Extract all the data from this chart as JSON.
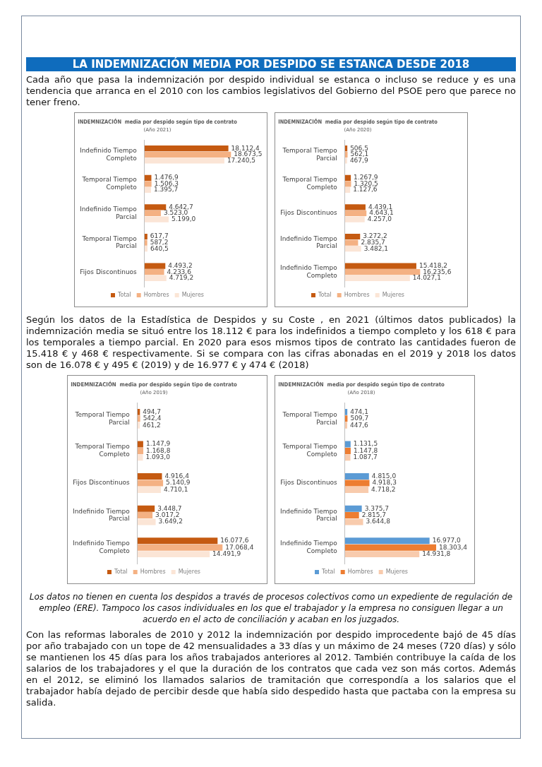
{
  "chart_data": [
    {
      "type": "other",
      "title": "LA INDEMNIZACIÓN MEDIA POR DESPIDO SE ESTANCA DESDE 2018",
      "annotations": [
        "Cada año que pasa la indemnización por despido individual se estanca o incluso se reduce y es una tendencia que arranca en el 2010 con los cambios legislativos del Gobierno del PSOE pero que parece no tener freno."
      ]
    },
    {
      "type": "bar",
      "orientation": "horizontal",
      "title": "INDEMNIZACIÓN  media por despido según tipo de contrato",
      "subtitle": "(Año 2021)",
      "legend": "bottom",
      "categories": [
        "Indefinido Tiempo Completo",
        "Temporal Tiempo Completo",
        "Indefinido Tiempo Parcial",
        "Temporal Tiempo Parcial",
        "Fijos Discontinuos"
      ],
      "series": [
        {
          "name": "Total",
          "color": "#c55a11",
          "values": [
            18112.4,
            1476.9,
            4642.7,
            617.7,
            4493.2
          ],
          "value_labels": [
            "18.112,4",
            "1.476,9",
            "4.642,7",
            "617,7",
            "4.493,2"
          ]
        },
        {
          "name": "Hombres",
          "color": "#f4b183",
          "values": [
            18673.5,
            1506.3,
            3523.0,
            587.2,
            4233.6
          ],
          "value_labels": [
            "18.673,5",
            "1.506,3",
            "3.523,0",
            "587,2",
            "4.233,6"
          ]
        },
        {
          "name": "Mujeres",
          "color": "#fbe5d6",
          "values": [
            17240.5,
            1395.7,
            5199.0,
            640.5,
            4719.2
          ],
          "value_labels": [
            "17.240,5",
            "1.395,7",
            "5.199,0",
            "640,5",
            "4.719,2"
          ]
        }
      ]
    },
    {
      "type": "bar",
      "orientation": "horizontal",
      "title": "INDEMNIZACIÓN  media por despido según tipo de contrato",
      "subtitle": "(Año 2020)",
      "legend": "bottom",
      "categories": [
        "Temporal Tiempo Parcial",
        "Temporal Tiempo Completo",
        "Fijos Discontinuos",
        "Indefinido Tiempo Parcial",
        "Indefinido Tiempo Completo"
      ],
      "series": [
        {
          "name": "Total",
          "color": "#c55a11",
          "values": [
            506.5,
            1267.9,
            4439.1,
            3272.2,
            15418.2
          ],
          "value_labels": [
            "506,5",
            "1.267,9",
            "4.439,1",
            "3.272,2",
            "15.418,2"
          ]
        },
        {
          "name": "Hombres",
          "color": "#f4b183",
          "values": [
            562.1,
            1320.5,
            4643.1,
            2835.7,
            16235.6
          ],
          "value_labels": [
            "562,1",
            "1.320,5",
            "4.643,1",
            "2.835,7",
            "16.235,6"
          ]
        },
        {
          "name": "Mujeres",
          "color": "#fbe5d6",
          "values": [
            467.9,
            1127.6,
            4257.0,
            3482.1,
            14027.1
          ],
          "value_labels": [
            "467,9",
            "1.127,6",
            "4.257,0",
            "3.482,1",
            "14.027,1"
          ]
        }
      ]
    },
    {
      "type": "other",
      "annotations": [
        "Según los datos de la Estadística de Despidos y su Coste , en 2021 (últimos datos publicados) la indemnización media se situó entre los 18.112 € para los indefinidos a tiempo completo y los 618 € para los temporales a tiempo parcial. En 2020 para esos mismos tipos de contrato las cantidades fueron de 15.418 € y 468 € respectivamente. Si se compara con las cifras abonadas en el 2019 y 2018 los datos son de 16.078 € y 495 € (2019) y de 16.977 € y 474 € (2018)"
      ]
    },
    {
      "type": "bar",
      "orientation": "horizontal",
      "title": "INDEMNIZACIÓN  media por despido según tipo de contrato",
      "subtitle": "(Año 2019)",
      "legend": "bottom",
      "categories": [
        "Temporal Tiempo Parcial",
        "Temporal Tiempo Completo",
        "Fijos Discontinuos",
        "Indefinido Tiempo Parcial",
        "Indefinido Tiempo Completo"
      ],
      "series": [
        {
          "name": "Total",
          "color": "#c55a11",
          "values": [
            494.7,
            1147.9,
            4916.4,
            3448.7,
            16077.6
          ],
          "value_labels": [
            "494,7",
            "1.147,9",
            "4.916,4",
            "3.448,7",
            "16.077,6"
          ]
        },
        {
          "name": "Hombres",
          "color": "#f4b183",
          "values": [
            542.4,
            1168.8,
            5140.9,
            3017.2,
            17068.4
          ],
          "value_labels": [
            "542,4",
            "1.168,8",
            "5.140,9",
            "3.017,2",
            "17.068,4"
          ]
        },
        {
          "name": "Mujeres",
          "color": "#fbe5d6",
          "values": [
            461.2,
            1093.0,
            4710.1,
            3649.2,
            14491.9
          ],
          "value_labels": [
            "461,2",
            "1.093,0",
            "4.710,1",
            "3.649,2",
            "14.491,9"
          ]
        }
      ]
    },
    {
      "type": "bar",
      "orientation": "horizontal",
      "title": "INDEMNIZACIÓN  media por despido según tipo de contrato",
      "subtitle": "(Año 2018)",
      "legend": "bottom",
      "categories": [
        "Temporal Tiempo Parcial",
        "Temporal Tiempo Completo",
        "Fijos Discontinuos",
        "Indefinido Tiempo Parcial",
        "Indefinido Tiempo Completo"
      ],
      "series": [
        {
          "name": "Total",
          "color": "#5b9bd5",
          "values": [
            474.1,
            1131.5,
            4815.0,
            3375.7,
            16977.0
          ],
          "value_labels": [
            "474,1",
            "1.131,5",
            "4.815,0",
            "3.375,7",
            "16.977,0"
          ]
        },
        {
          "name": "Hombres",
          "color": "#ed7d31",
          "values": [
            509.7,
            1147.8,
            4918.3,
            2815.7,
            18303.4
          ],
          "value_labels": [
            "509,7",
            "1.147,8",
            "4.918,3",
            "2.815,7",
            "18.303,4"
          ]
        },
        {
          "name": "Mujeres",
          "color": "#f8cbad",
          "values": [
            447.6,
            1087.7,
            4718.2,
            3644.8,
            14931.8
          ],
          "value_labels": [
            "447,6",
            "1.087,7",
            "4.718,2",
            "3.644,8",
            "14.931,8"
          ]
        }
      ]
    },
    {
      "type": "other",
      "annotations": [
        "Los datos no tienen en cuenta los despidos a través de procesos colectivos como un expediente de regulación de empleo (ERE). Tampoco los casos individuales en los que el trabajador y la empresa no consiguen llegar a un acuerdo en el acto de conciliación y acaban en los juzgados.",
        "Con las reformas laborales de 2010 y 2012 la indemnización por despido improcedente bajó de 45 días por año trabajado con un tope de 42 mensualidades a 33 días y un máximo de 24 meses (720 días) y sólo se mantienen los 45 días para los años trabajados anteriores al 2012. También contribuye la caída de los salarios de los trabajadores y el que la duración de los contratos que cada vez son más cortos. Además en el 2012, se eliminó los llamados salarios de tramitación que correspondía a los salarios que el trabajador había dejado de percibir desde que había sido despedido hasta que pactaba con la empresa su salida."
      ]
    }
  ]
}
